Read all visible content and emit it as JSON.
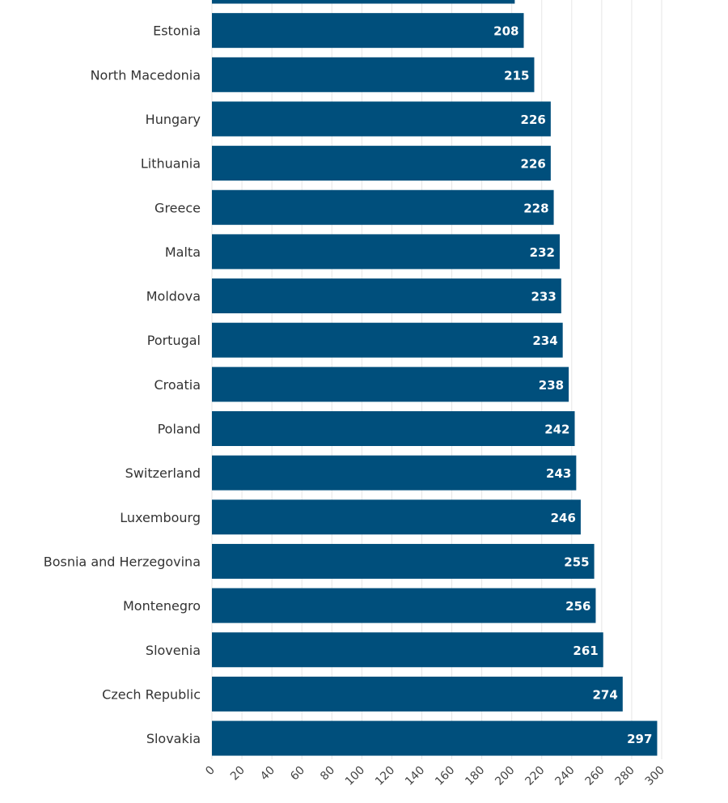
{
  "chart_data": {
    "type": "bar",
    "orientation": "horizontal",
    "categories": [
      "",
      "Estonia",
      "North Macedonia",
      "Hungary",
      "Lithuania",
      "Greece",
      "Malta",
      "Moldova",
      "Portugal",
      "Croatia",
      "Poland",
      "Switzerland",
      "Luxembourg",
      "Bosnia and Herzegovina",
      "Montenegro",
      "Slovenia",
      "Czech Republic",
      "Slovakia"
    ],
    "values": [
      202,
      208,
      215,
      226,
      226,
      228,
      232,
      233,
      234,
      238,
      242,
      243,
      246,
      255,
      256,
      261,
      274,
      297
    ],
    "value_labels": [
      "",
      "208",
      "215",
      "226",
      "226",
      "228",
      "232",
      "233",
      "234",
      "238",
      "242",
      "243",
      "246",
      "255",
      "256",
      "261",
      "274",
      "297"
    ],
    "title": "",
    "xlabel": "",
    "ylabel": "",
    "xlim": [
      0,
      300
    ],
    "xticks": [
      "0",
      "20",
      "40",
      "60",
      "80",
      "100",
      "120",
      "140",
      "160",
      "180",
      "200",
      "220",
      "240",
      "260",
      "280",
      "300"
    ],
    "grid": "vertical",
    "legend": "none",
    "bar_color": "#004f7c",
    "label_color": "#ffffff"
  }
}
